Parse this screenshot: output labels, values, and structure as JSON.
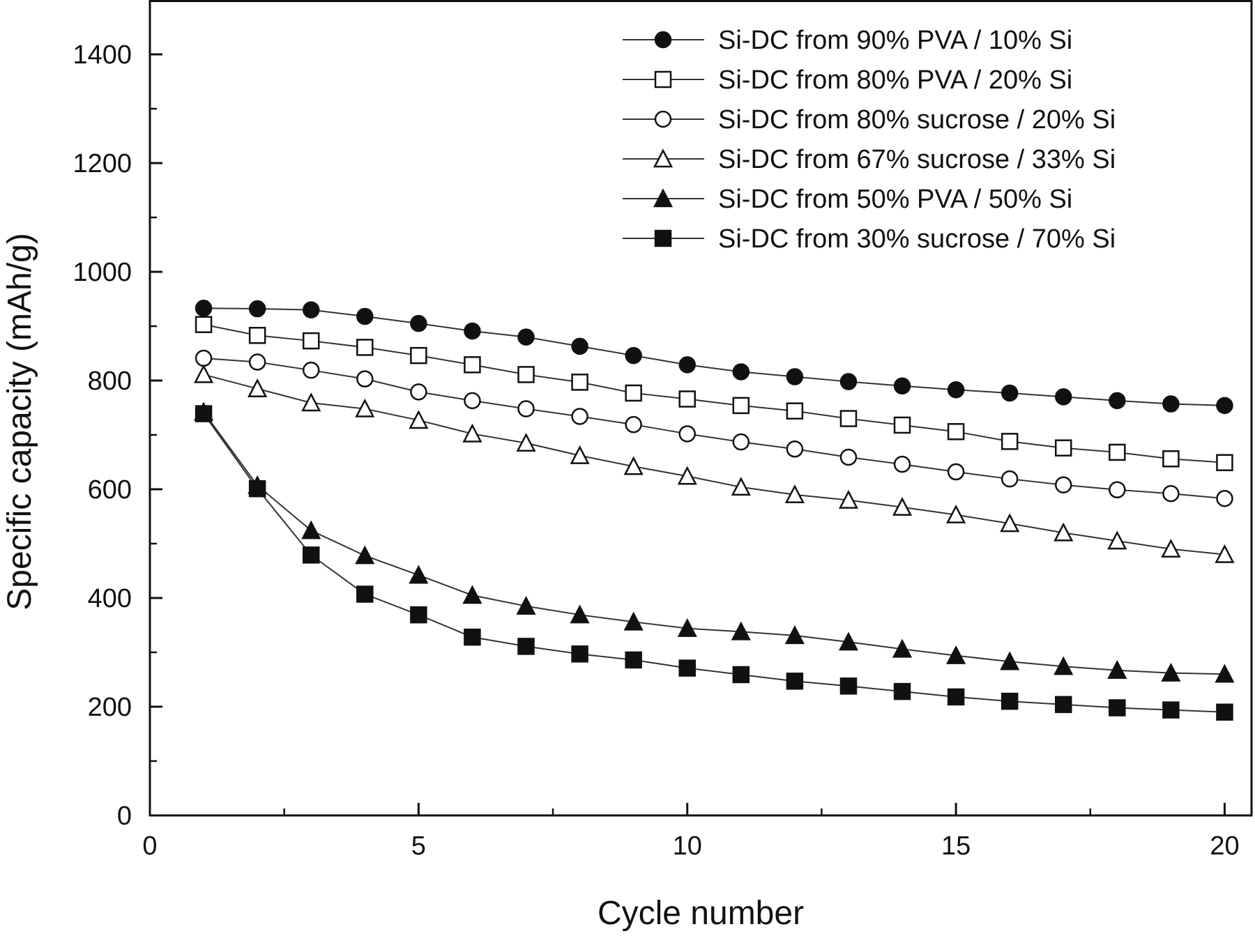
{
  "chart_data": {
    "type": "line",
    "title": "",
    "xlabel": "Cycle number",
    "ylabel": "Specific capacity (mAh/g)",
    "xlim": [
      0,
      20.5
    ],
    "ylim": [
      0,
      1500
    ],
    "xticks": [
      0,
      5,
      10,
      15,
      20
    ],
    "xtick_labels": [
      "0",
      "5",
      "10",
      "15",
      "20"
    ],
    "yticks": [
      0,
      200,
      400,
      600,
      800,
      1000,
      1200,
      1400
    ],
    "ytick_labels": [
      "0",
      "200",
      "400",
      "600",
      "800",
      "1000",
      "1200",
      "1400"
    ],
    "grid": false,
    "legend_position": "top-right",
    "x": [
      1,
      2,
      3,
      4,
      5,
      6,
      7,
      8,
      9,
      10,
      11,
      12,
      13,
      14,
      15,
      16,
      17,
      18,
      19,
      20
    ],
    "series": [
      {
        "name": "Si-DC from 90% PVA / 10% Si",
        "marker": "filled-circle",
        "values": [
          933,
          932,
          930,
          918,
          905,
          891,
          880,
          863,
          846,
          829,
          816,
          807,
          798,
          790,
          783,
          777,
          770,
          763,
          757,
          754
        ]
      },
      {
        "name": "Si-DC from 80% PVA / 20% Si",
        "marker": "open-square",
        "values": [
          903,
          883,
          873,
          861,
          846,
          829,
          811,
          797,
          777,
          766,
          754,
          744,
          730,
          718,
          706,
          688,
          676,
          668,
          656,
          649
        ]
      },
      {
        "name": "Si-DC from 80% sucrose / 20% Si",
        "marker": "open-circle",
        "values": [
          841,
          834,
          819,
          803,
          779,
          763,
          748,
          734,
          719,
          702,
          687,
          674,
          659,
          646,
          632,
          619,
          608,
          599,
          592,
          583
        ]
      },
      {
        "name": "Si-DC from 67% sucrose / 33% Si",
        "marker": "open-triangle",
        "values": [
          811,
          785,
          759,
          748,
          727,
          702,
          685,
          662,
          642,
          624,
          604,
          590,
          580,
          567,
          553,
          537,
          520,
          505,
          490,
          480
        ]
      },
      {
        "name": "Si-DC from 50% PVA / 50% Si",
        "marker": "filled-triangle",
        "values": [
          742,
          607,
          524,
          478,
          442,
          405,
          385,
          369,
          356,
          344,
          338,
          331,
          319,
          306,
          294,
          283,
          274,
          267,
          262,
          260
        ]
      },
      {
        "name": "Si-DC from 30% sucrose / 70% Si",
        "marker": "filled-square",
        "values": [
          739,
          601,
          479,
          407,
          369,
          328,
          311,
          297,
          286,
          271,
          259,
          247,
          238,
          228,
          218,
          210,
          204,
          198,
          194,
          190
        ]
      }
    ]
  }
}
